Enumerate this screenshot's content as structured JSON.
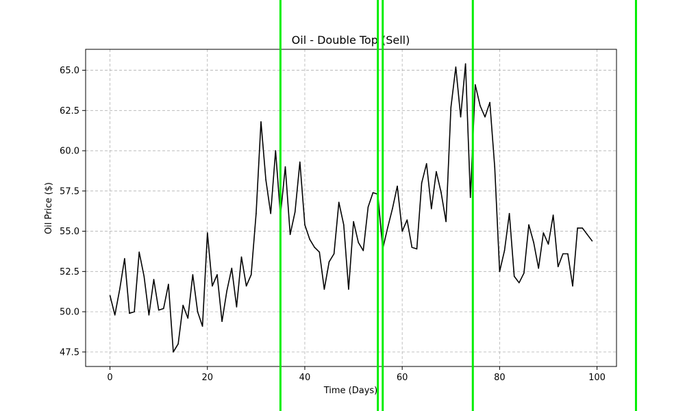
{
  "chart_data": {
    "type": "line",
    "title": "Oil - Double Top (Sell)",
    "xlabel": "Time (Days)",
    "ylabel": "Oil Price ($)",
    "xlim": [
      -5,
      104
    ],
    "ylim": [
      46.6,
      66.3
    ],
    "xticks": [
      0,
      20,
      40,
      60,
      80,
      100
    ],
    "yticks": [
      47.5,
      50.0,
      52.5,
      55.0,
      57.5,
      60.0,
      62.5,
      65.0
    ],
    "grid": true,
    "series": [
      {
        "color": "#000000",
        "x": [
          0,
          1,
          2,
          3,
          4,
          5,
          6,
          7,
          8,
          9,
          10,
          11,
          12,
          13,
          14,
          15,
          16,
          17,
          18,
          19,
          20,
          21,
          22,
          23,
          24,
          25,
          26,
          27,
          28,
          29,
          30,
          31,
          32,
          33,
          34,
          35,
          36,
          37,
          38,
          39,
          40,
          41,
          42,
          43,
          44,
          45,
          46,
          47,
          48,
          49,
          50,
          51,
          52,
          53,
          54,
          55,
          56,
          57,
          58,
          59,
          60,
          61,
          62,
          63,
          64,
          65,
          66,
          67,
          68,
          69,
          70,
          71,
          72,
          73,
          74,
          75,
          76,
          77,
          78,
          79,
          80,
          81,
          82,
          83,
          84,
          85,
          86,
          87,
          88,
          89,
          90,
          91,
          92,
          93,
          94,
          95,
          96,
          97,
          98,
          99
        ],
        "y": [
          51.0,
          49.8,
          51.4,
          53.3,
          49.9,
          50.0,
          53.7,
          52.2,
          49.8,
          52.0,
          50.1,
          50.2,
          51.7,
          47.5,
          48.0,
          50.4,
          49.6,
          52.3,
          50.0,
          49.1,
          54.9,
          51.6,
          52.3,
          49.4,
          51.3,
          52.7,
          50.3,
          53.4,
          51.6,
          52.3,
          56.1,
          61.8,
          58.2,
          56.1,
          60.0,
          56.0,
          59.0,
          54.8,
          56.2,
          59.3,
          55.4,
          54.5,
          54.0,
          53.7,
          51.4,
          53.1,
          53.6,
          56.8,
          55.4,
          51.4,
          55.6,
          54.3,
          53.8,
          56.5,
          57.4,
          57.3,
          53.9,
          55.2,
          56.4,
          57.8,
          55.0,
          55.7,
          54.0,
          53.9,
          58.0,
          59.2,
          56.4,
          58.7,
          57.4,
          55.6,
          62.7,
          65.2,
          62.1,
          65.4,
          57.1,
          64.1,
          62.8,
          62.1,
          63.0,
          59.0,
          52.5,
          53.8,
          56.1,
          52.2,
          51.8,
          52.4,
          55.4,
          54.3,
          52.7,
          54.9,
          54.2,
          56.0,
          52.8,
          53.6,
          53.6,
          51.6,
          55.2,
          55.2,
          54.8,
          54.4
        ]
      }
    ],
    "vlines": {
      "color": "#00ee00",
      "x": [
        35,
        55,
        56,
        74.5,
        108
      ]
    }
  }
}
